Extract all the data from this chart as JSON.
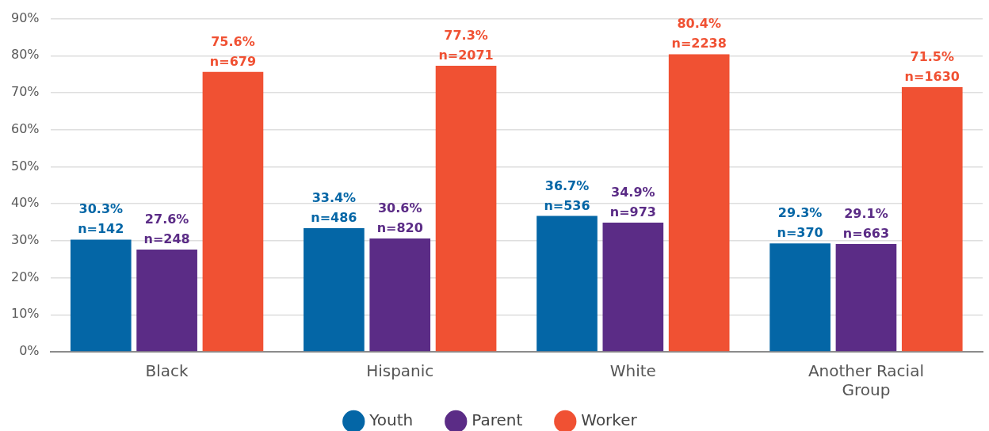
{
  "chart_data": {
    "type": "bar",
    "categories": [
      "Black",
      "Hispanic",
      "White",
      "Another Racial Group"
    ],
    "series": [
      {
        "name": "Youth",
        "color": "#0466a6",
        "values": [
          30.3,
          33.4,
          36.7,
          29.3
        ],
        "value_labels": [
          "30.3%\nn=142",
          "33.4%\nn=486",
          "36.7%\nn=536",
          "29.3%\nn=370"
        ]
      },
      {
        "name": "Parent",
        "color": "#5b2c86",
        "values": [
          27.6,
          30.6,
          34.9,
          29.1
        ],
        "value_labels": [
          "27.6%\nn=248",
          "30.6%\nn=820",
          "34.9%\nn=973",
          "29.1%\nn=663"
        ]
      },
      {
        "name": "Worker",
        "color": "#f05133",
        "values": [
          75.6,
          77.3,
          80.4,
          71.5
        ],
        "value_labels": [
          "75.6%\nn=679",
          "77.3%\nn=2071",
          "80.4%\nn=2238",
          "71.5%\nn=1630"
        ]
      }
    ],
    "ylim": [
      0,
      90
    ],
    "yticks": [
      {
        "value": 0,
        "label": "0%"
      },
      {
        "value": 10,
        "label": "10%"
      },
      {
        "value": 20,
        "label": "20%"
      },
      {
        "value": 30,
        "label": "30%"
      },
      {
        "value": 40,
        "label": "40%"
      },
      {
        "value": 50,
        "label": "50%"
      },
      {
        "value": 60,
        "label": "60%"
      },
      {
        "value": 70,
        "label": "70%"
      },
      {
        "value": 80,
        "label": "80%"
      },
      {
        "value": 90,
        "label": "90%"
      }
    ],
    "grid": "y",
    "legend": "bottom"
  }
}
